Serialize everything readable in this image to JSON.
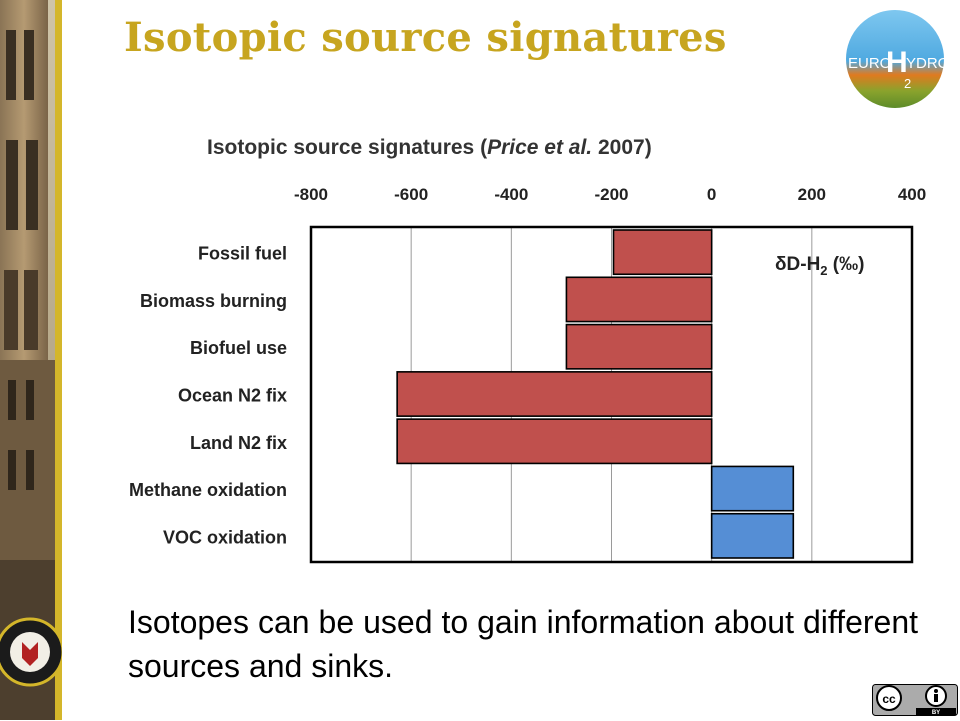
{
  "slide": {
    "title": "Isotopic source signatures",
    "body": "Isotopes can be used to gain information about different sources and sinks."
  },
  "logo": {
    "word_left": "EURO",
    "word_right": "YDROS",
    "big_letter": "H",
    "subscript": "2",
    "icon": "eurohydros-logo"
  },
  "license": {
    "icon_cc": "cc-icon",
    "icon_by": "by-icon",
    "label": "BY"
  },
  "colors": {
    "title": "#c7a51f",
    "negative_bar": "#c0504d",
    "positive_bar": "#558ed5"
  },
  "chart_data": {
    "type": "bar",
    "orientation": "horizontal",
    "title_prefix": "Isotopic  source signatures (",
    "title_citation": "Price et al.",
    "title_suffix": " 2007)",
    "annotation": "δD-H",
    "annotation_sub": "2",
    "annotation_unit": " (‰)",
    "categories": [
      "Fossil fuel",
      "Biomass burning",
      "Biofuel use",
      "Ocean N2 fix",
      "Land N2 fix",
      "Methane oxidation",
      "VOC oxidation"
    ],
    "values": [
      -196,
      -290,
      -290,
      -628,
      -628,
      163,
      163
    ],
    "xlim": [
      -800,
      400
    ],
    "xticks": [
      -800,
      -600,
      -400,
      -200,
      0,
      200,
      400
    ],
    "xtick_labels": [
      "-800",
      "-600",
      "-400",
      "-200",
      "0",
      "200",
      "400"
    ],
    "tick_position": "top",
    "grid": true
  }
}
